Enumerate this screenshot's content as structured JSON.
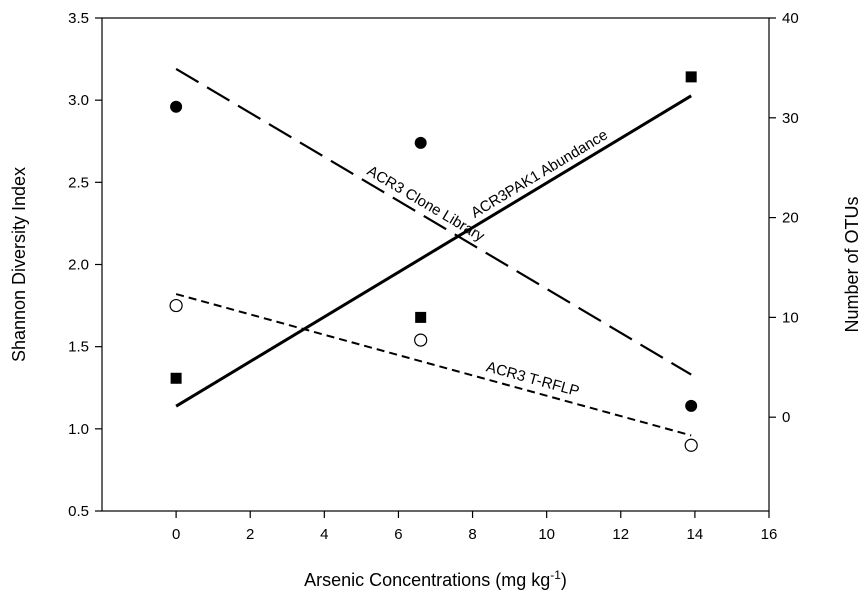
{
  "chart_data": {
    "type": "scatter",
    "xlabel": "Arsenic Concentrations (mg kg",
    "xlabel_sup": "-1",
    "xlabel_close": ")",
    "ylabel": "Shannon Diversity Index",
    "y2label": "Number of OTUs",
    "xlim": [
      -2,
      16
    ],
    "ylim": [
      0.5,
      3.5
    ],
    "y2lim": [
      -9.4,
      40
    ],
    "x_ticks": [
      "0",
      "2",
      "4",
      "6",
      "8",
      "10",
      "12",
      "14",
      "16"
    ],
    "y_ticks": [
      "0.5",
      "1.0",
      "1.5",
      "2.0",
      "2.5",
      "3.0",
      "3.5"
    ],
    "y2_ticks": [
      "0",
      "10",
      "20",
      "30",
      "40"
    ],
    "grid": false,
    "legend": "none",
    "series": [
      {
        "name": "ACR3 Clone Library",
        "axis": "left",
        "marker": "filled-circle",
        "x": [
          0,
          6.6,
          13.9
        ],
        "y": [
          2.96,
          2.74,
          1.14
        ],
        "fit": {
          "x": [
            0,
            13.9
          ],
          "y": [
            3.19,
            1.33
          ],
          "style": "long-dash"
        }
      },
      {
        "name": "ACR3PAK1 Abundance",
        "axis": "right",
        "marker": "filled-square",
        "x": [
          0,
          6.6,
          13.9
        ],
        "y": [
          3.9,
          10.0,
          34.1
        ],
        "fit": {
          "x": [
            0,
            13.9
          ],
          "y": [
            1.1,
            32.2
          ],
          "style": "solid"
        }
      },
      {
        "name": "ACR3 T-RFLP",
        "axis": "left",
        "marker": "open-circle",
        "x": [
          0,
          6.6,
          13.9
        ],
        "y": [
          1.75,
          1.54,
          0.9
        ],
        "fit": {
          "x": [
            0,
            13.9
          ],
          "y": [
            1.82,
            0.96
          ],
          "style": "short-dash"
        }
      }
    ]
  }
}
